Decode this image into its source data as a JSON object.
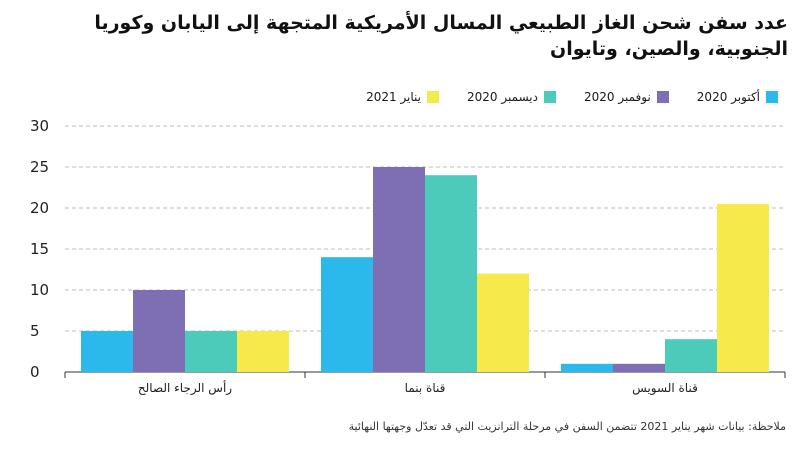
{
  "title": "عدد سفن شحن الغاز الطبيعي المسال الأمريكية المتجهة إلى اليابان وكوريا الجنوبية، والصين، وتايوان",
  "note": "ملاحظة: بيانات شهر يناير 2021 تتضمن السفن في مرحلة الترانزيت التي قد تعدّل وجهتها النهائية",
  "chart_data": {
    "type": "bar",
    "title": "عدد سفن شحن الغاز الطبيعي المسال الأمريكية المتجهة إلى اليابان وكوريا الجنوبية، والصين، وتايوان",
    "xlabel": "",
    "ylabel": "",
    "categories": [
      "رأس الرجاء الصالح",
      "قناة بنما",
      "قناة السويس"
    ],
    "ylim": [
      0,
      30
    ],
    "yticks": [
      0,
      5,
      10,
      15,
      20,
      25,
      30
    ],
    "grid": true,
    "legend_position": "top-right",
    "series": [
      {
        "name": "أكتوبر 2020",
        "color": "#2bb8ea",
        "values": [
          5,
          14,
          1
        ]
      },
      {
        "name": "نوفمبر 2020",
        "color": "#7e6fb5",
        "values": [
          10,
          25,
          1
        ]
      },
      {
        "name": "ديسمبر 2020",
        "color": "#4ccbbb",
        "values": [
          5,
          24,
          4
        ]
      },
      {
        "name": "يناير 2021",
        "color": "#f5e94c",
        "values": [
          5,
          12,
          20.5
        ]
      }
    ]
  }
}
